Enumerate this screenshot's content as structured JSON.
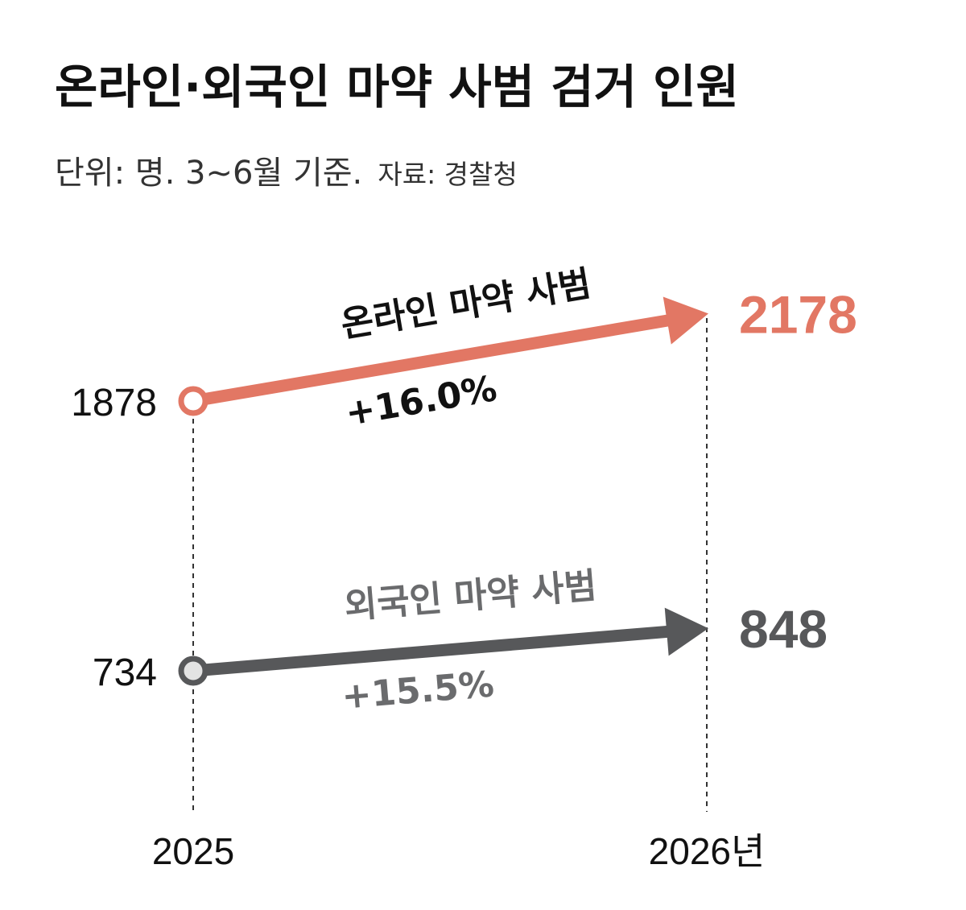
{
  "title": "온라인·외국인 마약 사범 검거 인원",
  "subtitle": "단위: 명. 3~6월 기준.",
  "source": "자료: 경찰청",
  "chart_data": {
    "type": "slope",
    "x": [
      "2025",
      "2026"
    ],
    "x_labels": [
      "2025",
      "2026년"
    ],
    "series": [
      {
        "name": "온라인 마약 사범",
        "values": [
          1878,
          2178
        ],
        "change": "+16.0%",
        "start_label": "1878",
        "end_label": "2178",
        "color": "#e27764",
        "marker_fill": "#ffffff"
      },
      {
        "name": "외국인 마약 사범",
        "values": [
          734,
          848
        ],
        "change": "+15.5%",
        "start_label": "734",
        "end_label": "848",
        "color": "#57585a",
        "marker_fill": "#e3e3e3"
      }
    ],
    "grid": false,
    "legend": "none"
  }
}
